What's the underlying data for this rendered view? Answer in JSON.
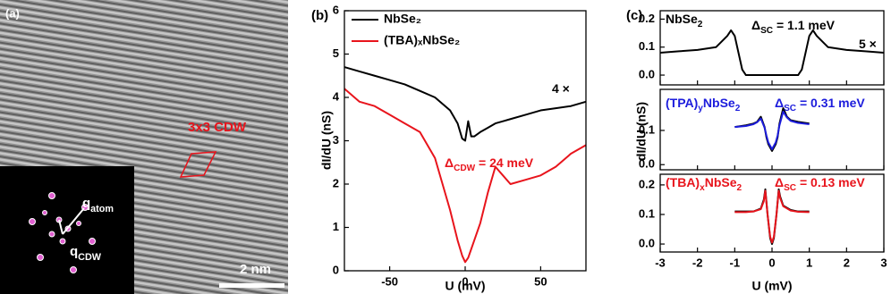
{
  "panel_a": {
    "label": "(a)",
    "annotation": "3x3 CDW",
    "q_atom": {
      "parts": [
        "q",
        "atom"
      ]
    },
    "q_cdw": {
      "parts": [
        "q",
        "CDW"
      ]
    },
    "scale_bar": "2 nm"
  },
  "chart_data": [
    {
      "type": "line",
      "panel_label": "(b)",
      "x_label": "U (mV)",
      "y_label": "dI/dU (nS)",
      "x": [
        -80,
        -70,
        -60,
        -50,
        -40,
        -30,
        -20,
        -15,
        -10,
        -5,
        -2,
        0,
        2,
        4,
        6,
        10,
        15,
        20,
        25,
        30,
        40,
        50,
        60,
        70,
        80
      ],
      "series": [
        {
          "name": "NbSe₂",
          "color": "#000000",
          "values": [
            4.7,
            4.6,
            4.5,
            4.4,
            4.3,
            4.15,
            4.0,
            3.85,
            3.7,
            3.4,
            3.05,
            3.0,
            3.45,
            3.1,
            3.1,
            3.2,
            3.3,
            3.4,
            3.45,
            3.5,
            3.6,
            3.7,
            3.75,
            3.8,
            3.9
          ]
        },
        {
          "name": "(TBA)ₓNbSe₂",
          "color": "#e8141c",
          "values": [
            4.2,
            3.9,
            3.8,
            3.6,
            3.4,
            3.2,
            2.6,
            2.0,
            1.4,
            0.7,
            0.35,
            0.2,
            0.3,
            0.5,
            0.7,
            1.1,
            1.8,
            2.4,
            2.2,
            2.0,
            2.1,
            2.2,
            2.4,
            2.7,
            2.9
          ]
        }
      ],
      "xlim": [
        -80,
        80
      ],
      "xticks": [
        -50,
        0,
        50
      ],
      "ylim": [
        0,
        6
      ],
      "yticks": [
        0,
        1,
        2,
        3,
        4,
        5,
        6
      ],
      "legend": "upper left",
      "annotations": [
        {
          "parts": [
            "4 ×"
          ],
          "color": "#000000"
        },
        {
          "parts": [
            "Δ",
            "CDW",
            " = 24 meV"
          ],
          "color": "#e8141c"
        }
      ]
    },
    {
      "type": "line",
      "panel_label": "(c)",
      "x": [
        -3,
        -2.5,
        -2,
        -1.5,
        -1.2,
        -1.1,
        -1,
        -0.9,
        -0.8,
        -0.7,
        0.7,
        0.8,
        0.9,
        1,
        1.1,
        1.2,
        1.5,
        2,
        2.5,
        3
      ],
      "series": [
        {
          "color": "#000000",
          "values": [
            0.08,
            0.085,
            0.09,
            0.1,
            0.14,
            0.16,
            0.14,
            0.08,
            0.02,
            0,
            0,
            0.02,
            0.08,
            0.14,
            0.16,
            0.14,
            0.1,
            0.09,
            0.085,
            0.08
          ]
        }
      ],
      "xlim": [
        -3,
        3
      ],
      "xticks": [
        -3,
        -2,
        -1,
        0,
        1,
        2,
        3
      ],
      "ylim": [
        -0.035,
        0.23
      ],
      "yticks": [
        {
          "value": 0,
          "label": "0.0"
        },
        0.1,
        0.2
      ],
      "annotations": [
        {
          "parts": [
            "NbSe",
            "2"
          ],
          "color": "#000000"
        },
        {
          "parts": [
            "Δ",
            "SC",
            " = 1.1 meV"
          ],
          "color": "#000000"
        },
        {
          "parts": [
            "5 ×"
          ],
          "color": "#000000"
        }
      ]
    },
    {
      "type": "line",
      "y_label": "dI/dU (nS)",
      "x": [
        -1,
        -0.7,
        -0.5,
        -0.4,
        -0.3,
        -0.2,
        -0.15,
        -0.1,
        0,
        0.1,
        0.15,
        0.2,
        0.3,
        0.4,
        0.5,
        0.7,
        1
      ],
      "series": [
        {
          "color": "#000000",
          "values": [
            0.11,
            0.115,
            0.12,
            0.125,
            0.14,
            0.11,
            0.08,
            0.06,
            0.04,
            0.06,
            0.08,
            0.12,
            0.165,
            0.14,
            0.13,
            0.125,
            0.12
          ]
        },
        {
          "color": "#1c1cdc",
          "values": [
            0.11,
            0.113,
            0.118,
            0.124,
            0.135,
            0.108,
            0.085,
            0.065,
            0.045,
            0.065,
            0.085,
            0.115,
            0.155,
            0.138,
            0.128,
            0.122,
            0.118
          ]
        }
      ],
      "xlim": [
        -3,
        3
      ],
      "xticks": [
        -3,
        -2,
        -1,
        0,
        1,
        2,
        3
      ],
      "ylim": [
        -0.015,
        0.22
      ],
      "yticks": [
        {
          "value": 0,
          "label": "0.0"
        },
        0.1
      ],
      "annotations": [
        {
          "parts": [
            "(TPA)",
            "y",
            "NbSe",
            "2"
          ],
          "color": "#1c1cdc"
        },
        {
          "parts": [
            "Δ",
            "SC",
            " = 0.31 meV"
          ],
          "color": "#1c1cdc"
        }
      ]
    },
    {
      "type": "line",
      "x_label": "U (mV)",
      "x": [
        -1,
        -0.7,
        -0.5,
        -0.3,
        -0.22,
        -0.18,
        -0.12,
        -0.05,
        0,
        0.05,
        0.12,
        0.18,
        0.22,
        0.3,
        0.5,
        0.7,
        1
      ],
      "series": [
        {
          "color": "#000000",
          "values": [
            0.11,
            0.11,
            0.11,
            0.12,
            0.15,
            0.185,
            0.1,
            0.02,
            0.0,
            0.02,
            0.1,
            0.185,
            0.16,
            0.13,
            0.115,
            0.11,
            0.11
          ]
        },
        {
          "color": "#e8141c",
          "values": [
            0.108,
            0.108,
            0.11,
            0.118,
            0.145,
            0.18,
            0.1,
            0.025,
            0.005,
            0.025,
            0.1,
            0.18,
            0.155,
            0.128,
            0.113,
            0.109,
            0.108
          ]
        }
      ],
      "xlim": [
        -3,
        3
      ],
      "xticks": [
        -3,
        -2,
        -1,
        0,
        1,
        2,
        3
      ],
      "ylim": [
        -0.027,
        0.236
      ],
      "yticks": [
        {
          "value": 0,
          "label": "0.0"
        },
        0.1,
        0.2
      ],
      "annotations": [
        {
          "parts": [
            "(TBA)",
            "x",
            "NbSe",
            "2"
          ],
          "color": "#e8141c"
        },
        {
          "parts": [
            "Δ",
            "SC",
            " = 0.13 meV"
          ],
          "color": "#e8141c"
        }
      ]
    }
  ]
}
